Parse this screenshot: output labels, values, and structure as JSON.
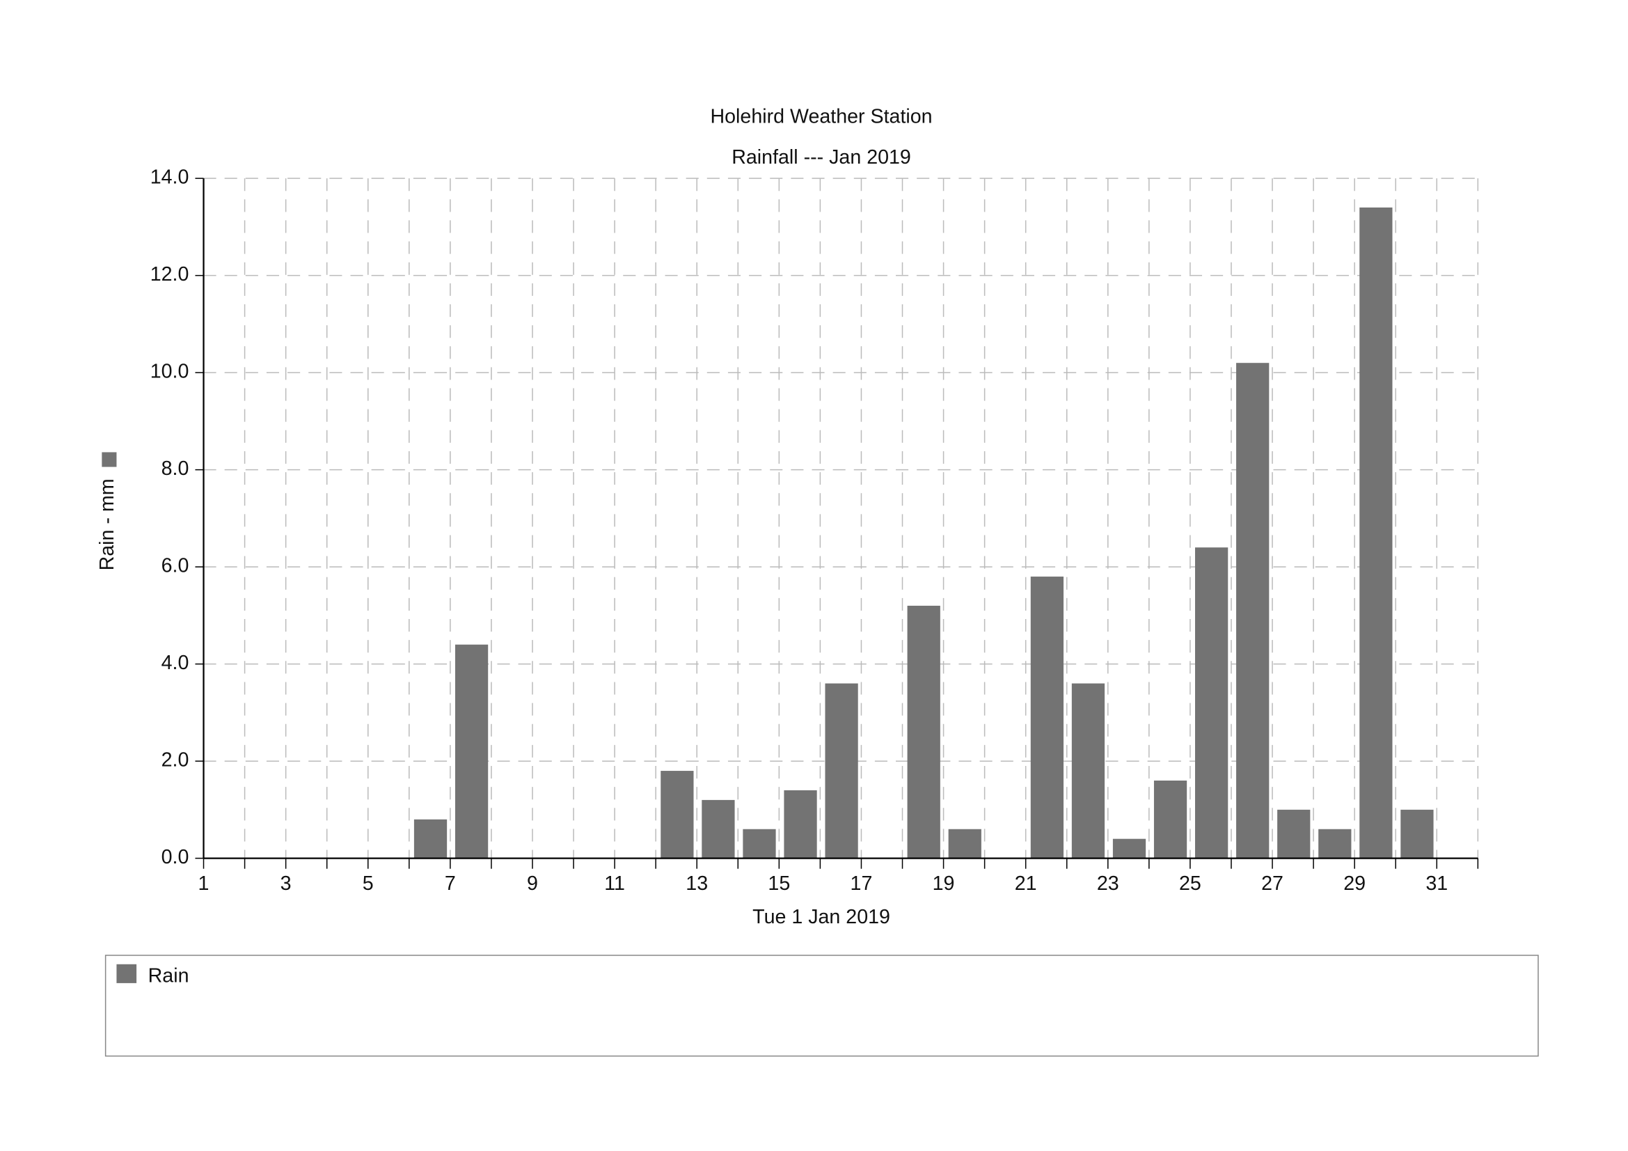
{
  "chart_data": {
    "type": "bar",
    "title": "Holehird Weather Station",
    "subtitle": "Rainfall --- Jan 2019",
    "x_label": "Tue 1 Jan 2019",
    "y_label": "Rain - mm",
    "x": [
      1,
      2,
      3,
      4,
      5,
      6,
      7,
      8,
      9,
      10,
      11,
      12,
      13,
      14,
      15,
      16,
      17,
      18,
      19,
      20,
      21,
      22,
      23,
      24,
      25,
      26,
      27,
      28,
      29,
      30,
      31
    ],
    "series": [
      {
        "name": "Rain",
        "color": "#737373",
        "values": [
          0,
          0,
          0,
          0,
          0,
          0.8,
          4.4,
          0,
          0,
          0,
          0,
          1.8,
          1.2,
          0.6,
          1.4,
          3.6,
          0,
          5.2,
          0.6,
          0,
          5.8,
          3.6,
          0.4,
          1.6,
          6.4,
          10.2,
          1.0,
          0.6,
          13.4,
          1.0,
          0
        ]
      }
    ],
    "xlim": [
      1,
      32
    ],
    "xticks": [
      1,
      3,
      5,
      7,
      9,
      11,
      13,
      15,
      17,
      19,
      21,
      23,
      25,
      27,
      29,
      31
    ],
    "x_minor_ticks": [
      2,
      4,
      6,
      8,
      10,
      12,
      14,
      16,
      18,
      20,
      22,
      24,
      26,
      28,
      30,
      32
    ],
    "ylim": [
      0,
      14
    ],
    "yticks": [
      {
        "value": 0,
        "label": "0.0"
      },
      {
        "value": 2,
        "label": "2.0"
      },
      {
        "value": 4,
        "label": "4.0"
      },
      {
        "value": 6,
        "label": "6.0"
      },
      {
        "value": 8,
        "label": "8.0"
      },
      {
        "value": 10,
        "label": "10.0"
      },
      {
        "value": 12,
        "label": "12.0"
      },
      {
        "value": 14,
        "label": "14.0"
      }
    ],
    "grid": true
  }
}
